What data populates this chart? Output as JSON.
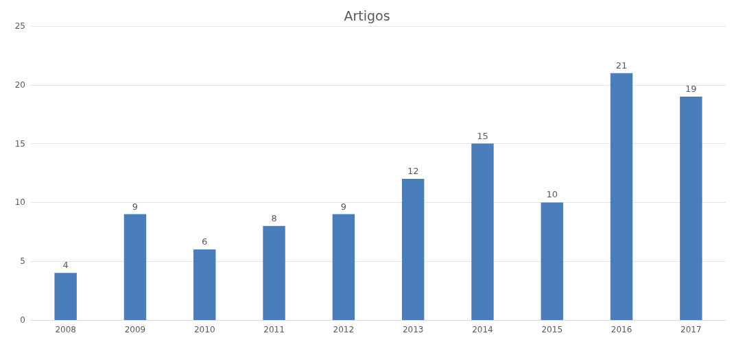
{
  "chart_data": {
    "type": "bar",
    "title": "Artigos",
    "categories": [
      "2008",
      "2009",
      "2010",
      "2011",
      "2012",
      "2013",
      "2014",
      "2015",
      "2016",
      "2017"
    ],
    "values": [
      4,
      9,
      6,
      8,
      9,
      12,
      15,
      10,
      21,
      19
    ],
    "color": "#4a7ebb",
    "ylim": [
      0,
      25
    ],
    "yticks": [
      0,
      5,
      10,
      15,
      20,
      25
    ],
    "grid": "y",
    "data_labels": true
  }
}
